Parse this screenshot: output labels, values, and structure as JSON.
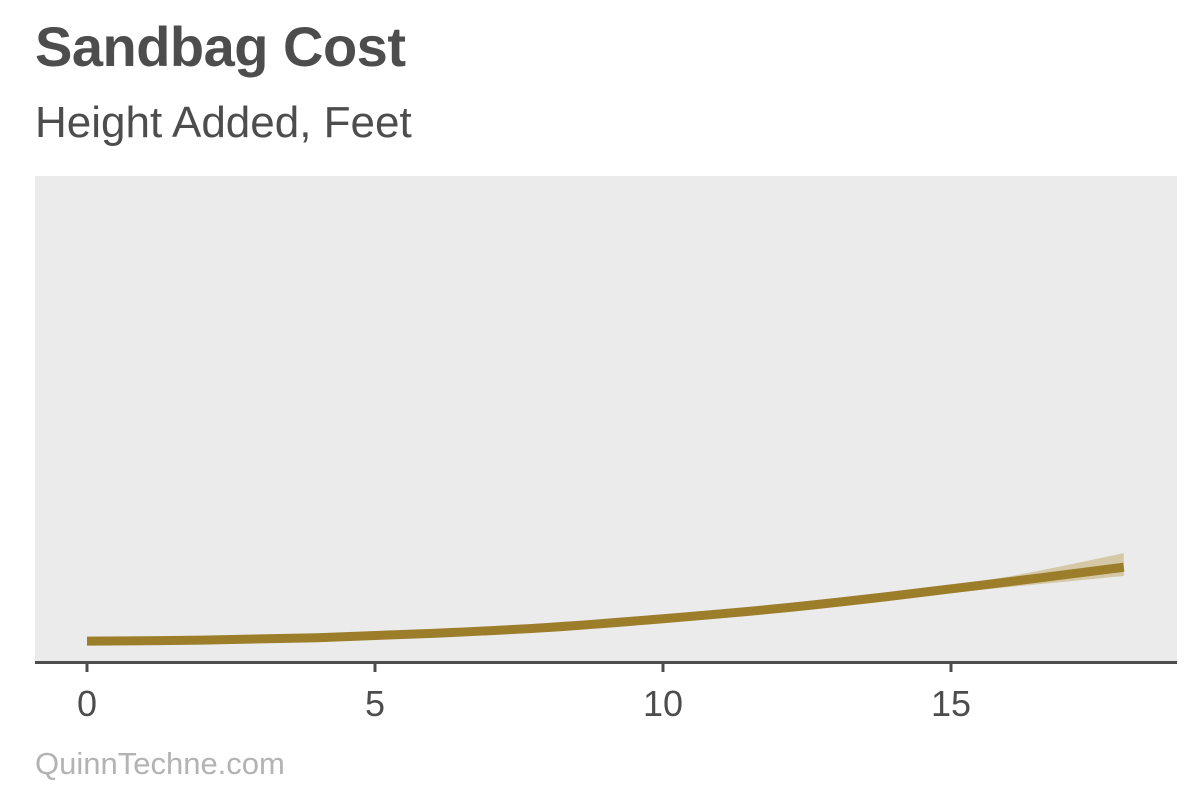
{
  "header": {
    "title": "Sandbag Cost",
    "subtitle": "Height Added, Feet"
  },
  "footer": {
    "source": "QuinnTechne.com"
  },
  "colors": {
    "line": "#9b7d2a",
    "band": "#d5c8a6",
    "panel": "#ebebeb",
    "axis": "#4d4d4d",
    "text": "#4d4d4d",
    "source_text": "#b3b3b3"
  },
  "chart_data": {
    "type": "line",
    "title": "Sandbag Cost",
    "subtitle": "Height Added, Feet",
    "xlabel": "Height Added, Feet",
    "ylabel": "",
    "xlim": [
      -1.8,
      18.9
    ],
    "ylim": [
      0,
      100
    ],
    "x_ticks": [
      0,
      5,
      10,
      15
    ],
    "y_ticks": [],
    "grid": false,
    "legend": null,
    "note": "Y axis unlabeled; y values are relative (0 = axis baseline, 100 = top of panel).",
    "series": [
      {
        "name": "Sandbag Cost",
        "x": [
          0,
          2,
          4,
          6,
          8,
          10,
          12,
          14,
          16,
          18
        ],
        "values": [
          4.3,
          4.5,
          5.0,
          5.9,
          7.1,
          8.9,
          11.0,
          13.6,
          16.5,
          19.5
        ],
        "lower": [
          4.3,
          4.5,
          5.0,
          5.9,
          7.1,
          8.8,
          10.7,
          13.0,
          15.4,
          17.7
        ],
        "upper": [
          4.3,
          4.5,
          5.0,
          5.9,
          7.1,
          9.0,
          11.3,
          14.2,
          17.6,
          22.4
        ]
      }
    ]
  }
}
